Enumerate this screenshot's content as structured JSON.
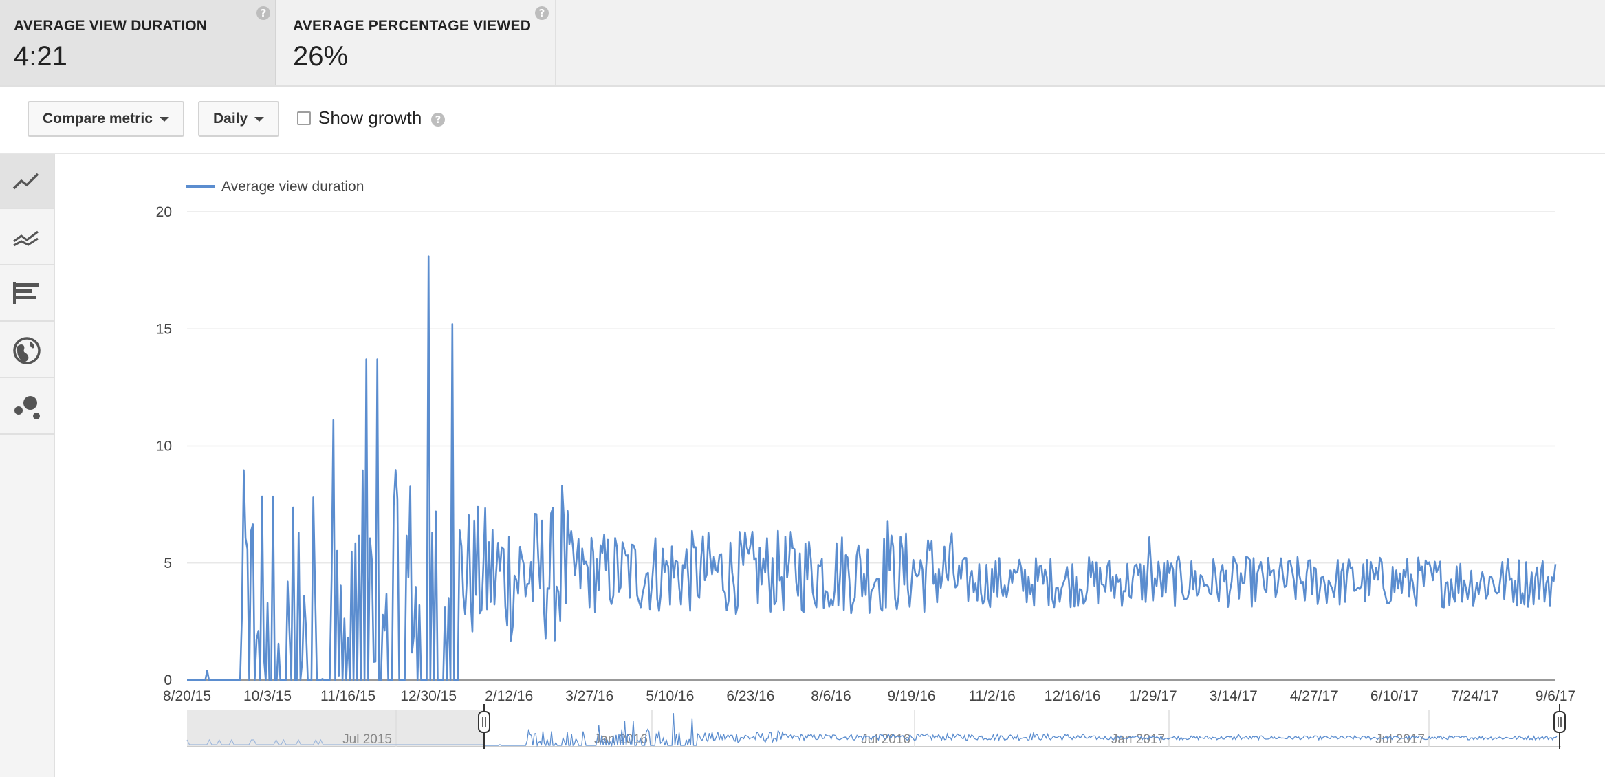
{
  "metrics": [
    {
      "label": "AVERAGE VIEW DURATION",
      "value": "4:21",
      "selected": true
    },
    {
      "label": "AVERAGE PERCENTAGE VIEWED",
      "value": "26%",
      "selected": false
    }
  ],
  "toolbar": {
    "compare_label": "Compare metric",
    "interval_label": "Daily",
    "show_growth_label": "Show growth",
    "show_growth_checked": false
  },
  "sidebar": {
    "buttons": [
      {
        "name": "line-chart-icon",
        "active": true
      },
      {
        "name": "multiline-chart-icon",
        "active": false
      },
      {
        "name": "bar-chart-icon",
        "active": false
      },
      {
        "name": "globe-icon",
        "active": false
      },
      {
        "name": "bubble-chart-icon",
        "active": false
      }
    ]
  },
  "help_glyph": "?",
  "colors": {
    "line": "#5b8dcf",
    "grid": "#e8e8e8",
    "navShade": "#e8e8e8"
  },
  "chart_data": {
    "type": "line",
    "series": [
      {
        "name": "Average view duration"
      }
    ],
    "ylim": [
      0,
      20
    ],
    "yticks": [
      0,
      5,
      10,
      15,
      20
    ],
    "xticks": [
      "8/20/15",
      "10/3/15",
      "11/16/15",
      "12/30/15",
      "2/12/16",
      "3/27/16",
      "5/10/16",
      "6/23/16",
      "8/6/16",
      "9/19/16",
      "11/2/16",
      "12/16/16",
      "1/29/17",
      "3/14/17",
      "4/27/17",
      "6/10/17",
      "7/24/17",
      "9/6/17"
    ],
    "x_start": "8/20/15",
    "x_end": "9/6/17",
    "grid": true,
    "legend": "top-left",
    "peaks": [
      {
        "date": "9/22/15",
        "value": 5.6
      },
      {
        "date": "10/28/15",
        "value": 7.8
      },
      {
        "date": "11/8/15",
        "value": 11.1
      },
      {
        "date": "11/26/15",
        "value": 13.7
      },
      {
        "date": "12/2/15",
        "value": 13.7
      },
      {
        "date": "12/30/15",
        "value": 18.1
      },
      {
        "date": "1/12/16",
        "value": 15.2
      },
      {
        "date": "3/12/16",
        "value": 8.3
      },
      {
        "date": "9/6/16",
        "value": 6.8
      },
      {
        "date": "1/27/17",
        "value": 6.1
      }
    ],
    "navigator": {
      "labels": [
        "Jul 2015",
        "Jan 2016",
        "Jul 2016",
        "Jan 2017",
        "Jul 2017"
      ]
    }
  }
}
